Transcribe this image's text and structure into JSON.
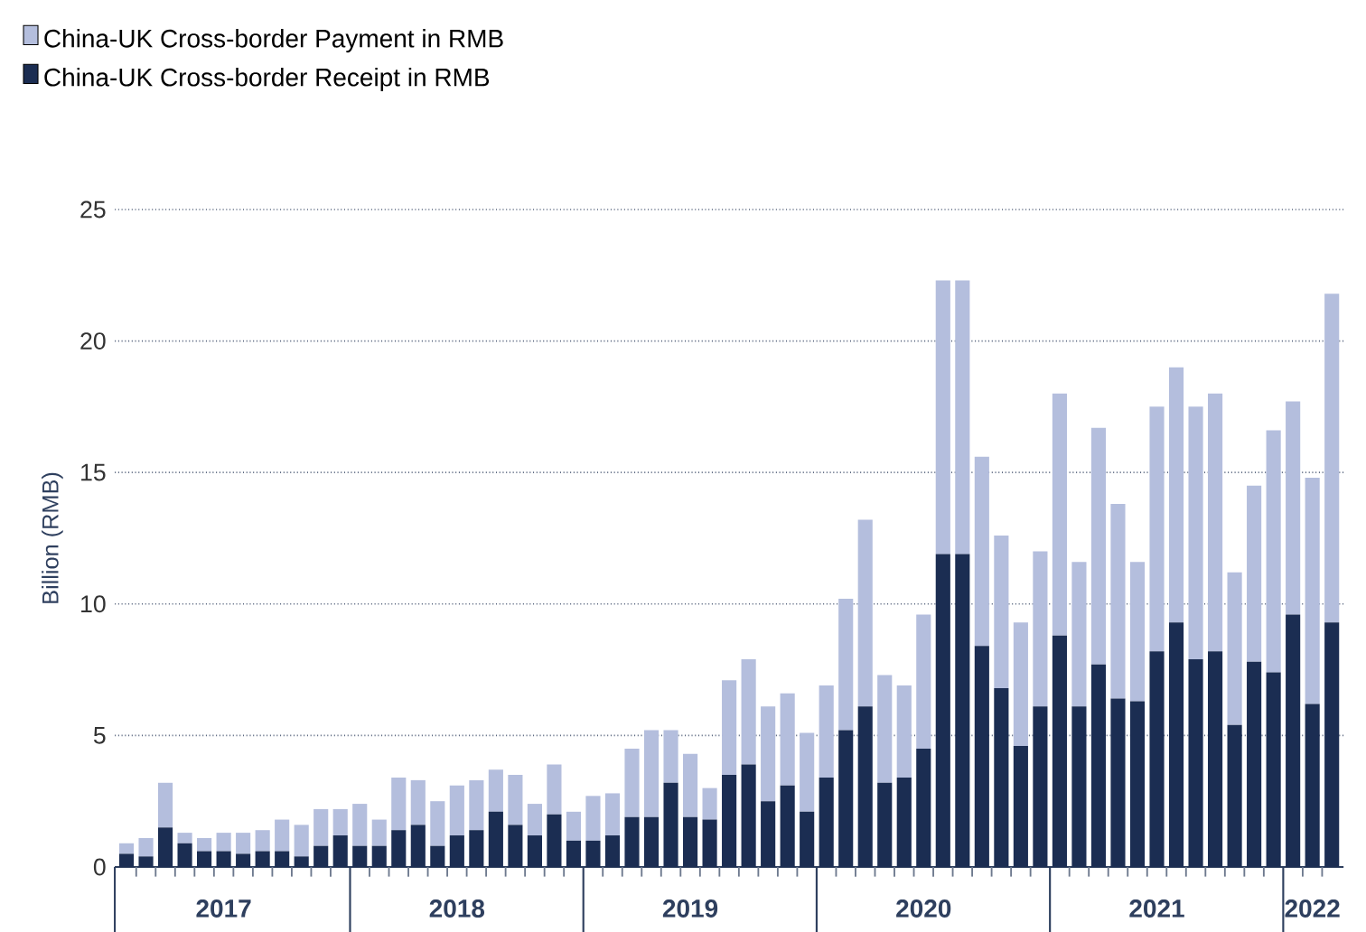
{
  "chart_data": {
    "type": "bar",
    "stacked": true,
    "ylabel": "Billion (RMB)",
    "categories": [
      null,
      null,
      null,
      null,
      null,
      "2017",
      null,
      null,
      null,
      null,
      null,
      null,
      null,
      null,
      null,
      null,
      null,
      "2018",
      null,
      null,
      null,
      null,
      null,
      null,
      null,
      null,
      null,
      null,
      null,
      "2019",
      null,
      null,
      null,
      null,
      null,
      null,
      null,
      null,
      null,
      null,
      null,
      "2020",
      null,
      null,
      null,
      null,
      null,
      null,
      null,
      null,
      null,
      null,
      null,
      "2021",
      null,
      null,
      null,
      null,
      null,
      null,
      null,
      "2022",
      null
    ],
    "series": [
      {
        "name": "China-UK Cross-border Receipt in RMB",
        "color": "#1b2d52",
        "values": [
          0.5,
          0.4,
          1.5,
          0.9,
          0.6,
          0.6,
          0.5,
          0.6,
          0.6,
          0.4,
          0.8,
          1.2,
          0.8,
          0.8,
          1.4,
          1.6,
          0.8,
          1.2,
          1.4,
          2.1,
          1.6,
          1.2,
          2.0,
          1.0,
          1.0,
          1.2,
          1.9,
          1.9,
          3.2,
          1.9,
          1.8,
          3.5,
          3.9,
          2.5,
          3.1,
          2.1,
          3.4,
          5.2,
          6.1,
          3.2,
          3.4,
          4.5,
          11.9,
          11.9,
          8.4,
          6.8,
          4.6,
          6.1,
          8.8,
          6.1,
          7.7,
          6.4,
          6.3,
          8.2,
          9.3,
          7.9,
          8.2,
          5.4,
          7.8,
          7.4,
          9.6,
          6.2,
          9.3
        ]
      },
      {
        "name": "China-UK Cross-border Payment in RMB",
        "color": "#b4bedd",
        "values": [
          0.4,
          0.7,
          1.7,
          0.4,
          0.5,
          0.7,
          0.8,
          0.8,
          1.2,
          1.2,
          1.4,
          1.0,
          1.6,
          1.0,
          2.0,
          1.7,
          1.7,
          1.9,
          1.9,
          1.6,
          1.9,
          1.2,
          1.9,
          1.1,
          1.7,
          1.6,
          2.6,
          3.3,
          2.0,
          2.4,
          1.2,
          3.6,
          4.0,
          3.6,
          3.5,
          3.0,
          3.5,
          5.0,
          7.1,
          4.1,
          3.5,
          5.1,
          10.4,
          10.4,
          7.2,
          5.8,
          4.7,
          5.9,
          9.2,
          5.5,
          9.0,
          7.4,
          5.3,
          9.3,
          9.7,
          9.6,
          9.8,
          5.8,
          6.7,
          9.2,
          8.1,
          8.6,
          12.5
        ]
      }
    ],
    "ylim": [
      0,
      25
    ],
    "yticks": [
      0,
      5,
      10,
      15,
      20,
      25
    ],
    "grid": "y",
    "legend": "top left"
  }
}
